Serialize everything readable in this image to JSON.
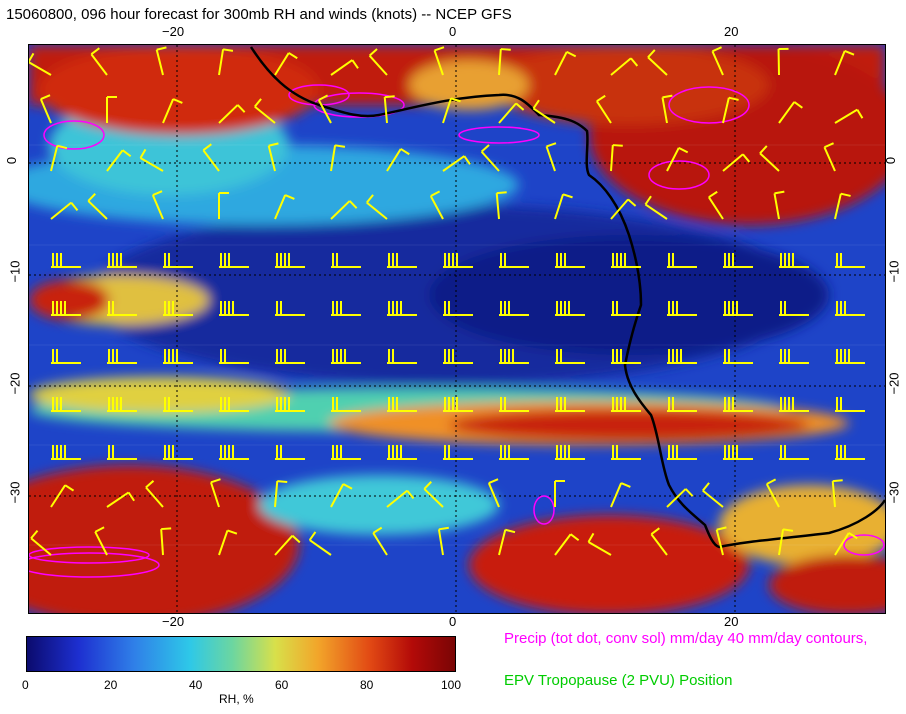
{
  "title": "15060800, 096 hour forecast for 300mb RH and winds (knots) -- NCEP GFS",
  "top_ticks": [
    "−20",
    "0",
    "20"
  ],
  "bottom_ticks": [
    "−20",
    "0",
    "20"
  ],
  "left_ticks": [
    "0",
    "−10",
    "−20",
    "−30"
  ],
  "right_ticks": [
    "0",
    "−10",
    "−20",
    "−30"
  ],
  "colorbar": {
    "ticks": [
      "0",
      "20",
      "40",
      "60",
      "80",
      "100"
    ],
    "label": "RH, %"
  },
  "legend": {
    "precip": "Precip (tot dot, conv sol) mm/day 40 mm/day contours,",
    "precip_color": "#ff00ff",
    "epv": "EPV Tropopause (2 PVU) Position",
    "epv_color": "#00cc00"
  },
  "colors": {
    "wind_barbs": "#ffff00",
    "coastline": "#000000",
    "precip": "#ff00ff"
  }
}
